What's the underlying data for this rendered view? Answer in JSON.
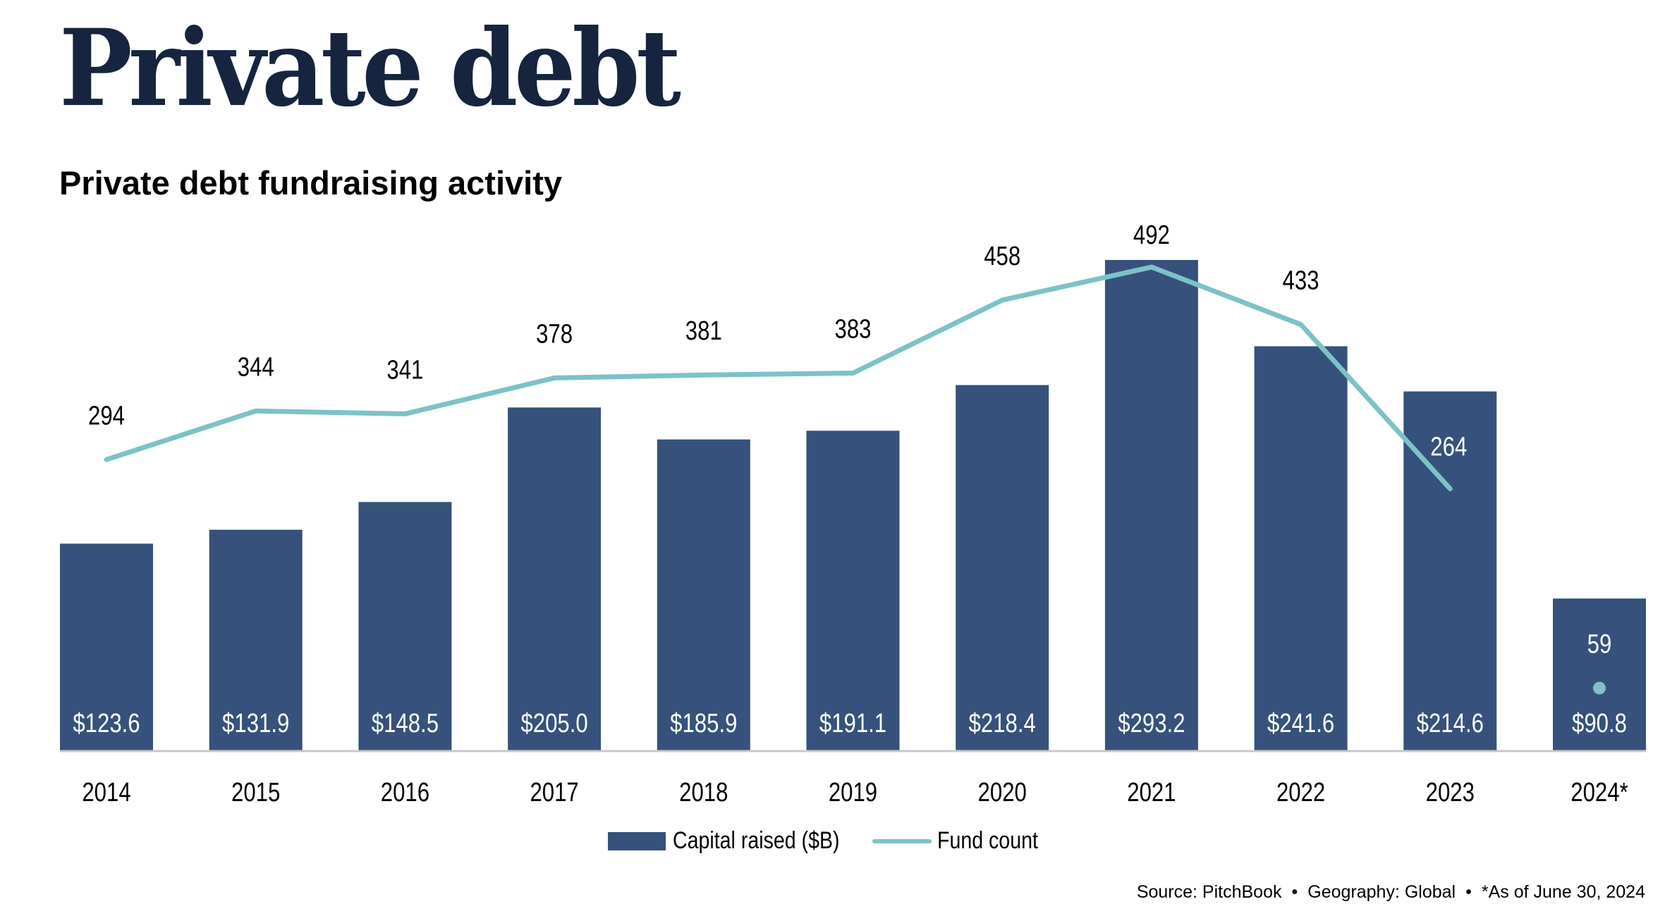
{
  "header": {
    "title": "Private debt",
    "subtitle": "Private debt fundraising activity"
  },
  "footer": {
    "source": "Source: PitchBook",
    "geography": "Geography: Global",
    "note": "*As of June 30, 2024",
    "separator": "•"
  },
  "colors": {
    "bar": "#36527c",
    "line": "#7cc2c6",
    "title": "#16243f",
    "axis": "#c8c8c8"
  },
  "chart_data": {
    "type": "bar",
    "title": "Private debt fundraising activity",
    "xlabel": "",
    "ylabel": "",
    "categories": [
      "2014",
      "2015",
      "2016",
      "2017",
      "2018",
      "2019",
      "2020",
      "2021",
      "2022",
      "2023",
      "2024*"
    ],
    "grid": false,
    "legend_position": "bottom-center",
    "series": [
      {
        "name": "Capital raised ($B)",
        "type": "bar",
        "values": [
          123.6,
          131.9,
          148.5,
          205.0,
          185.9,
          191.1,
          218.4,
          293.2,
          241.6,
          214.6,
          90.8
        ],
        "labels": [
          "$123.6",
          "$131.9",
          "$148.5",
          "$205.0",
          "$185.9",
          "$191.1",
          "$218.4",
          "$293.2",
          "$241.6",
          "$214.6",
          "$90.8"
        ]
      },
      {
        "name": "Fund count",
        "type": "line",
        "values": [
          294,
          344,
          341,
          378,
          381,
          383,
          458,
          492,
          433,
          264,
          59
        ],
        "labels": [
          "294",
          "344",
          "341",
          "378",
          "381",
          "383",
          "458",
          "492",
          "433",
          "264",
          "59"
        ],
        "line_break_before_last": true
      }
    ],
    "ylim_bar": [
      0,
      300
    ],
    "ylim_line": [
      0,
      510
    ]
  }
}
